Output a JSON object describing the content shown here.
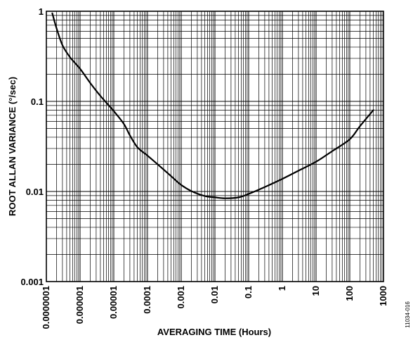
{
  "figure_id": "11034-016",
  "chart_data": {
    "type": "line",
    "title": "",
    "xlabel": "AVERAGING TIME (Hours)",
    "ylabel": "ROOT ALLAN VARIANCE (°/sec)",
    "x_scale": "log",
    "y_scale": "log",
    "xlim": [
      1e-07,
      1000
    ],
    "ylim": [
      0.001,
      1
    ],
    "grid": true,
    "legend": "none",
    "x_ticks": [
      {
        "value": 1e-07,
        "label": "0.0000001"
      },
      {
        "value": 1e-06,
        "label": "0.000001"
      },
      {
        "value": 1e-05,
        "label": "0.00001"
      },
      {
        "value": 0.0001,
        "label": "0.0001"
      },
      {
        "value": 0.001,
        "label": "0.001"
      },
      {
        "value": 0.01,
        "label": "0.01"
      },
      {
        "value": 0.1,
        "label": "0.1"
      },
      {
        "value": 1,
        "label": "1"
      },
      {
        "value": 10,
        "label": "10"
      },
      {
        "value": 100,
        "label": "100"
      },
      {
        "value": 1000,
        "label": "1000"
      }
    ],
    "y_ticks": [
      {
        "value": 0.001,
        "label": "0.001"
      },
      {
        "value": 0.01,
        "label": "0.01"
      },
      {
        "value": 0.1,
        "label": "0.1"
      },
      {
        "value": 1,
        "label": "1"
      }
    ],
    "series": [
      {
        "color": "#000000",
        "points": [
          [
            1.5e-07,
            0.95
          ],
          [
            2e-07,
            0.65
          ],
          [
            3e-07,
            0.42
          ],
          [
            5e-07,
            0.31
          ],
          [
            1e-06,
            0.23
          ],
          [
            2e-06,
            0.16
          ],
          [
            4e-06,
            0.115
          ],
          [
            1e-05,
            0.078
          ],
          [
            2e-05,
            0.056
          ],
          [
            3e-05,
            0.042
          ],
          [
            5e-05,
            0.031
          ],
          [
            0.0001,
            0.025
          ],
          [
            0.0002,
            0.02
          ],
          [
            0.0005,
            0.0148
          ],
          [
            0.001,
            0.0118
          ],
          [
            0.002,
            0.0101
          ],
          [
            0.005,
            0.0089
          ],
          [
            0.01,
            0.0086
          ],
          [
            0.02,
            0.0084
          ],
          [
            0.05,
            0.0086
          ],
          [
            0.1,
            0.0094
          ],
          [
            0.3,
            0.0112
          ],
          [
            1,
            0.0138
          ],
          [
            3,
            0.017
          ],
          [
            10,
            0.0214
          ],
          [
            30,
            0.028
          ],
          [
            100,
            0.038
          ],
          [
            200,
            0.053
          ],
          [
            500,
            0.08
          ]
        ]
      }
    ]
  }
}
